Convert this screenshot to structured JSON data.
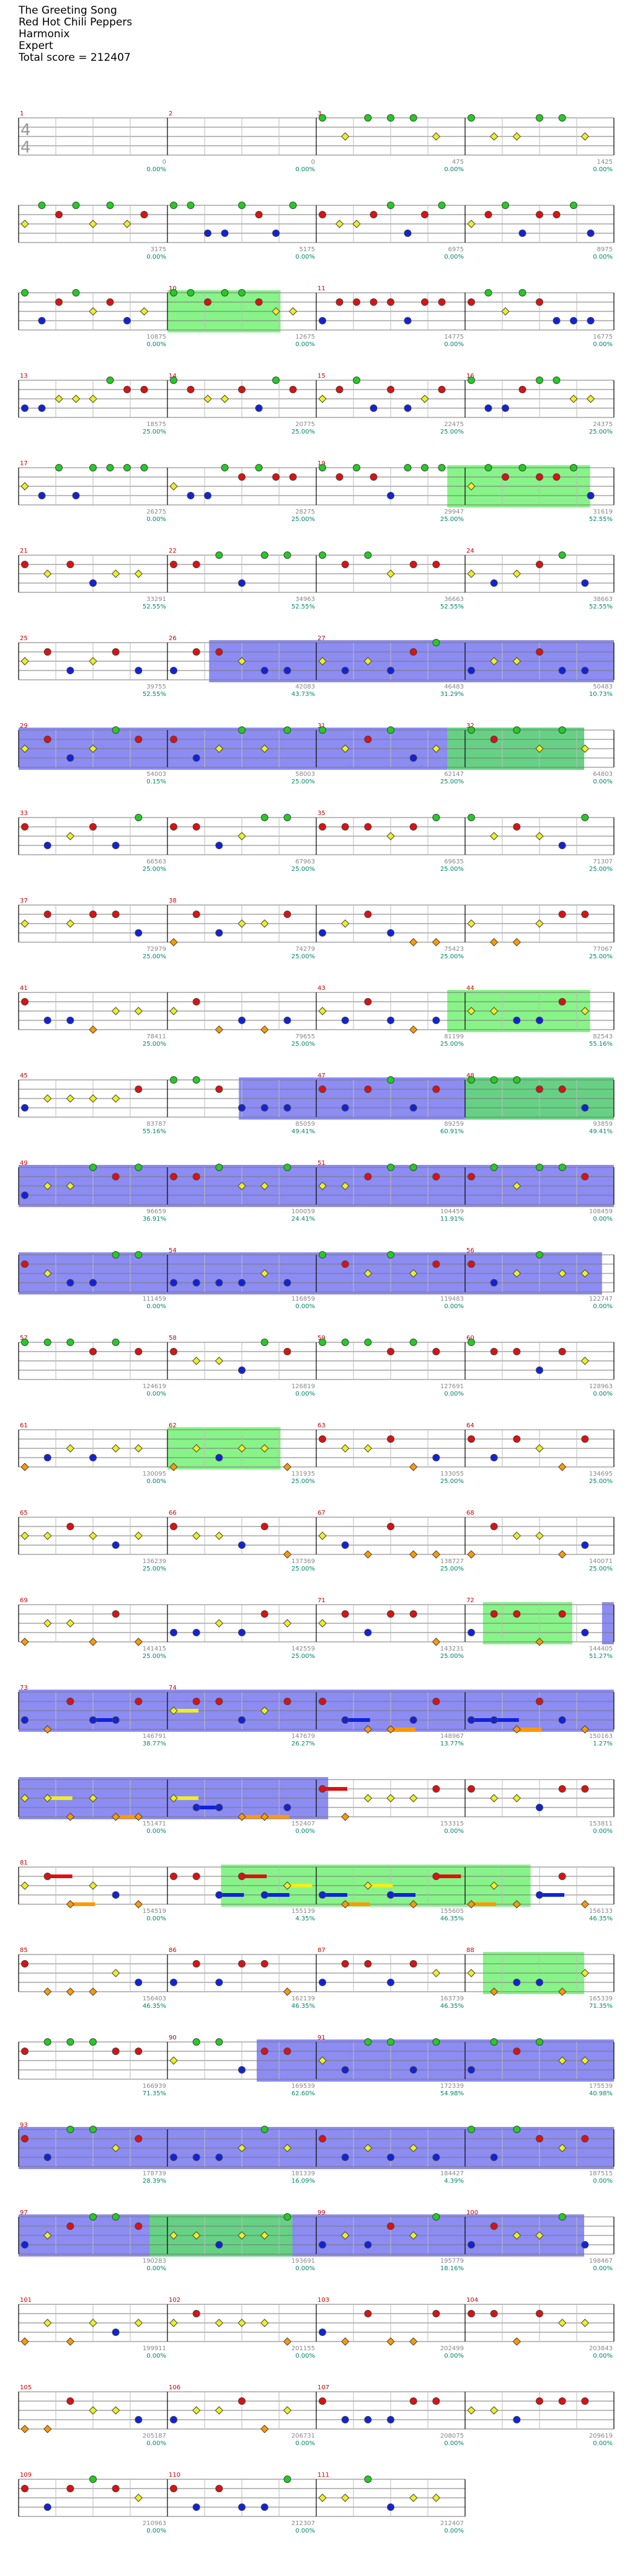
{
  "song": {
    "title": "The Greeting Song",
    "artist": "Red Hot Chili Peppers",
    "game": "Harmonix",
    "difficulty": "Expert",
    "total_score": "Total score = 212407"
  },
  "time_signature": {
    "top": "4",
    "bottom": "4"
  },
  "colors": {
    "green": "#22cc22",
    "red": "#dd1111",
    "yellow": "#eeee22",
    "blue": "#1122dd",
    "orange": "#ff9900",
    "overdrive": "#55ee55",
    "solo": "#6666ee",
    "sustain_lane": "#c8d2ec",
    "score_text": "#008866",
    "label_text": "#888888"
  },
  "rows": [
    {
      "measures": [
        {
          "num": "1",
          "score": "0",
          "pct": "0.00%"
        },
        {
          "num": "2",
          "score": "0",
          "pct": "0.00%"
        },
        {
          "num": "3",
          "score": "475",
          "pct": "0.00%"
        },
        {
          "num": "",
          "score": "1425",
          "pct": "0.00%"
        }
      ],
      "pattern": "intro",
      "od": [],
      "solo": []
    },
    {
      "measures": [
        {
          "num": "",
          "score": "3175",
          "pct": "0.00%"
        },
        {
          "num": "",
          "score": "5175",
          "pct": "0.00%"
        },
        {
          "num": "",
          "score": "6975",
          "pct": "0.00%"
        },
        {
          "num": "",
          "score": "8975",
          "pct": "0.00%"
        }
      ],
      "pattern": "green",
      "od": [],
      "solo": []
    },
    {
      "measures": [
        {
          "num": "",
          "score": "10875",
          "pct": "0.00%"
        },
        {
          "num": "10",
          "score": "12675",
          "pct": "0.00%"
        },
        {
          "num": "11",
          "score": "14775",
          "pct": "0.00%"
        },
        {
          "num": "",
          "score": "16775",
          "pct": "0.00%"
        }
      ],
      "pattern": "green",
      "od": [
        [
          0.25,
          0.44
        ]
      ],
      "solo": []
    },
    {
      "measures": [
        {
          "num": "13",
          "score": "18575",
          "pct": "25.00%"
        },
        {
          "num": "14",
          "score": "20775",
          "pct": "25.00%"
        },
        {
          "num": "15",
          "score": "22475",
          "pct": "25.00%"
        },
        {
          "num": "16",
          "score": "24375",
          "pct": "25.00%"
        }
      ],
      "pattern": "green",
      "od": [],
      "solo": []
    },
    {
      "measures": [
        {
          "num": "17",
          "score": "26275",
          "pct": "0.00%"
        },
        {
          "num": "",
          "score": "28275",
          "pct": "25.00%"
        },
        {
          "num": "19",
          "score": "29947",
          "pct": "25.00%"
        },
        {
          "num": "",
          "score": "31619",
          "pct": "52.55%"
        }
      ],
      "pattern": "green",
      "od": [
        [
          0.72,
          0.96
        ]
      ],
      "solo": []
    },
    {
      "measures": [
        {
          "num": "21",
          "score": "33291",
          "pct": "52.55%"
        },
        {
          "num": "22",
          "score": "34963",
          "pct": "52.55%"
        },
        {
          "num": "",
          "score": "36663",
          "pct": "52.55%"
        },
        {
          "num": "24",
          "score": "38663",
          "pct": "52.55%"
        }
      ],
      "pattern": "mix",
      "od": [],
      "solo": []
    },
    {
      "measures": [
        {
          "num": "25",
          "score": "39755",
          "pct": "52.55%"
        },
        {
          "num": "26",
          "score": "42083",
          "pct": "43.73%"
        },
        {
          "num": "27",
          "score": "46483",
          "pct": "31.29%"
        },
        {
          "num": "",
          "score": "50483",
          "pct": "10.73%"
        }
      ],
      "pattern": "mix",
      "od": [],
      "solo": [
        [
          0.32,
          1.0
        ]
      ]
    },
    {
      "measures": [
        {
          "num": "29",
          "score": "54003",
          "pct": "0.15%"
        },
        {
          "num": "",
          "score": "58003",
          "pct": "25.00%"
        },
        {
          "num": "31",
          "score": "62147",
          "pct": "25.00%"
        },
        {
          "num": "32",
          "score": "64803",
          "pct": "0.00%"
        }
      ],
      "pattern": "mix",
      "od": [
        [
          0.72,
          0.95
        ]
      ],
      "solo": [
        [
          0.0,
          0.95
        ]
      ]
    },
    {
      "measures": [
        {
          "num": "33",
          "score": "66563",
          "pct": "25.00%"
        },
        {
          "num": "",
          "score": "67963",
          "pct": "25.00%"
        },
        {
          "num": "35",
          "score": "69635",
          "pct": "25.00%"
        },
        {
          "num": "",
          "score": "71307",
          "pct": "25.00%"
        }
      ],
      "pattern": "mix",
      "od": [],
      "solo": []
    },
    {
      "measures": [
        {
          "num": "37",
          "score": "72979",
          "pct": "25.00%"
        },
        {
          "num": "38",
          "score": "74279",
          "pct": "25.00%"
        },
        {
          "num": "",
          "score": "75423",
          "pct": "25.00%"
        },
        {
          "num": "",
          "score": "77067",
          "pct": "25.00%"
        }
      ],
      "pattern": "low",
      "od": [],
      "solo": []
    },
    {
      "measures": [
        {
          "num": "41",
          "score": "78411",
          "pct": "25.00%"
        },
        {
          "num": "",
          "score": "79655",
          "pct": "25.00%"
        },
        {
          "num": "43",
          "score": "81199",
          "pct": "25.00%"
        },
        {
          "num": "44",
          "score": "82543",
          "pct": "55.16%"
        }
      ],
      "pattern": "low",
      "od": [
        [
          0.72,
          0.96
        ]
      ],
      "solo": []
    },
    {
      "measures": [
        {
          "num": "45",
          "score": "83787",
          "pct": "55.16%"
        },
        {
          "num": "",
          "score": "85059",
          "pct": "49.41%"
        },
        {
          "num": "47",
          "score": "89259",
          "pct": "60.91%"
        },
        {
          "num": "48",
          "score": "93859",
          "pct": "49.41%"
        }
      ],
      "pattern": "mix",
      "od": [
        [
          0.75,
          1.0
        ]
      ],
      "solo": [
        [
          0.37,
          1.0
        ]
      ]
    },
    {
      "measures": [
        {
          "num": "49",
          "score": "96659",
          "pct": "36.91%"
        },
        {
          "num": "",
          "score": "100059",
          "pct": "24.41%"
        },
        {
          "num": "51",
          "score": "104459",
          "pct": "11.91%"
        },
        {
          "num": "",
          "score": "108459",
          "pct": "0.00%"
        }
      ],
      "pattern": "mix",
      "od": [],
      "solo": [
        [
          0.0,
          1.0
        ]
      ]
    },
    {
      "measures": [
        {
          "num": "",
          "score": "111459",
          "pct": "0.00%"
        },
        {
          "num": "54",
          "score": "116859",
          "pct": "0.00%"
        },
        {
          "num": "",
          "score": "119483",
          "pct": "0.00%"
        },
        {
          "num": "56",
          "score": "122747",
          "pct": "0.00%"
        }
      ],
      "pattern": "mix",
      "od": [],
      "solo": [
        [
          0.0,
          0.98
        ]
      ]
    },
    {
      "measures": [
        {
          "num": "57",
          "score": "124619",
          "pct": "0.00%"
        },
        {
          "num": "58",
          "score": "126819",
          "pct": "0.00%"
        },
        {
          "num": "59",
          "score": "127691",
          "pct": "0.00%"
        },
        {
          "num": "60",
          "score": "128963",
          "pct": "0.00%"
        }
      ],
      "pattern": "mix",
      "od": [],
      "solo": []
    },
    {
      "measures": [
        {
          "num": "61",
          "score": "130095",
          "pct": "0.00%"
        },
        {
          "num": "62",
          "score": "131935",
          "pct": "25.00%"
        },
        {
          "num": "63",
          "score": "133055",
          "pct": "25.00%"
        },
        {
          "num": "64",
          "score": "134695",
          "pct": "25.00%"
        }
      ],
      "pattern": "low",
      "od": [
        [
          0.25,
          0.44
        ]
      ],
      "solo": []
    },
    {
      "measures": [
        {
          "num": "65",
          "score": "136239",
          "pct": "25.00%"
        },
        {
          "num": "66",
          "score": "137369",
          "pct": "25.00%"
        },
        {
          "num": "67",
          "score": "138727",
          "pct": "25.00%"
        },
        {
          "num": "68",
          "score": "140071",
          "pct": "25.00%"
        }
      ],
      "pattern": "low",
      "od": [],
      "solo": []
    },
    {
      "measures": [
        {
          "num": "69",
          "score": "141415",
          "pct": "25.00%"
        },
        {
          "num": "",
          "score": "142559",
          "pct": "25.00%"
        },
        {
          "num": "71",
          "score": "143231",
          "pct": "25.00%"
        },
        {
          "num": "72",
          "score": "144405",
          "pct": "51.27%"
        }
      ],
      "pattern": "low",
      "od": [
        [
          0.78,
          0.93
        ]
      ],
      "solo": [
        [
          0.98,
          1.0
        ]
      ]
    },
    {
      "measures": [
        {
          "num": "73",
          "score": "146791",
          "pct": "38.77%"
        },
        {
          "num": "74",
          "score": "147679",
          "pct": "26.27%"
        },
        {
          "num": "",
          "score": "148967",
          "pct": "13.77%"
        },
        {
          "num": "",
          "score": "150163",
          "pct": "1.27%"
        }
      ],
      "pattern": "sustain",
      "od": [],
      "solo": [
        [
          0.0,
          1.0
        ]
      ]
    },
    {
      "measures": [
        {
          "num": "",
          "score": "151471",
          "pct": "0.00%"
        },
        {
          "num": "",
          "score": "152407",
          "pct": "0.00%"
        },
        {
          "num": "",
          "score": "153315",
          "pct": "0.00%"
        },
        {
          "num": "",
          "score": "153811",
          "pct": "0.00%"
        }
      ],
      "pattern": "sustain",
      "od": [],
      "solo": [
        [
          0.0,
          0.52
        ]
      ]
    },
    {
      "measures": [
        {
          "num": "81",
          "score": "154519",
          "pct": "0.00%"
        },
        {
          "num": "",
          "score": "155139",
          "pct": "4.35%"
        },
        {
          "num": "",
          "score": "155605",
          "pct": "46.35%"
        },
        {
          "num": "",
          "score": "156133",
          "pct": "46.35%"
        }
      ],
      "pattern": "sustain",
      "od": [
        [
          0.34,
          0.86
        ]
      ],
      "solo": []
    },
    {
      "measures": [
        {
          "num": "85",
          "score": "156403",
          "pct": "46.35%"
        },
        {
          "num": "86",
          "score": "162139",
          "pct": "46.35%"
        },
        {
          "num": "87",
          "score": "163739",
          "pct": "46.35%"
        },
        {
          "num": "88",
          "score": "165339",
          "pct": "71.35%"
        }
      ],
      "pattern": "low",
      "od": [
        [
          0.78,
          0.95
        ]
      ],
      "solo": []
    },
    {
      "measures": [
        {
          "num": "",
          "score": "166939",
          "pct": "71.35%"
        },
        {
          "num": "90",
          "score": "169539",
          "pct": "62.60%"
        },
        {
          "num": "91",
          "score": "172339",
          "pct": "54.98%"
        },
        {
          "num": "",
          "score": "175539",
          "pct": "40.98%"
        }
      ],
      "pattern": "mix",
      "od": [],
      "solo": [
        [
          0.4,
          1.0
        ]
      ]
    },
    {
      "measures": [
        {
          "num": "93",
          "score": "178739",
          "pct": "28.39%"
        },
        {
          "num": "",
          "score": "181339",
          "pct": "16.09%"
        },
        {
          "num": "",
          "score": "184427",
          "pct": "4.39%"
        },
        {
          "num": "",
          "score": "187515",
          "pct": "0.00%"
        }
      ],
      "pattern": "mix",
      "od": [],
      "solo": [
        [
          0.0,
          1.0
        ]
      ]
    },
    {
      "measures": [
        {
          "num": "97",
          "score": "190283",
          "pct": "0.00%"
        },
        {
          "num": "",
          "score": "193691",
          "pct": "0.00%"
        },
        {
          "num": "99",
          "score": "195779",
          "pct": "18.16%"
        },
        {
          "num": "100",
          "score": "198467",
          "pct": "0.00%"
        }
      ],
      "pattern": "mix",
      "od": [
        [
          0.22,
          0.46
        ]
      ],
      "solo": [
        [
          0.0,
          0.95
        ]
      ]
    },
    {
      "measures": [
        {
          "num": "101",
          "score": "199911",
          "pct": "0.00%"
        },
        {
          "num": "102",
          "score": "201155",
          "pct": "0.00%"
        },
        {
          "num": "103",
          "score": "202499",
          "pct": "0.00%"
        },
        {
          "num": "104",
          "score": "203843",
          "pct": "0.00%"
        }
      ],
      "pattern": "low",
      "od": [],
      "solo": []
    },
    {
      "measures": [
        {
          "num": "105",
          "score": "205187",
          "pct": "0.00%"
        },
        {
          "num": "106",
          "score": "206731",
          "pct": "0.00%"
        },
        {
          "num": "107",
          "score": "208075",
          "pct": "0.00%"
        },
        {
          "num": "",
          "score": "209619",
          "pct": "0.00%"
        }
      ],
      "pattern": "low",
      "od": [],
      "solo": []
    },
    {
      "measures": [
        {
          "num": "109",
          "score": "210963",
          "pct": "0.00%"
        },
        {
          "num": "110",
          "score": "212307",
          "pct": "0.00%"
        },
        {
          "num": "111",
          "score": "212407",
          "pct": "0.00%"
        }
      ],
      "pattern": "end",
      "od": [],
      "solo": []
    }
  ]
}
